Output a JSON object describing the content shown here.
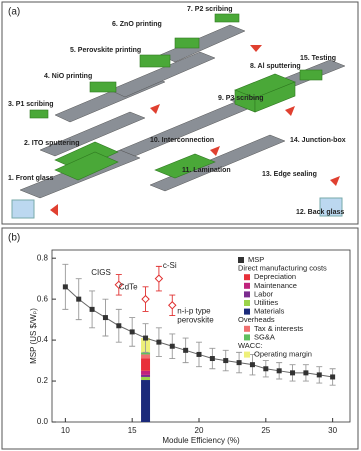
{
  "diagram": {
    "label": "(a)",
    "steps": [
      "1. Front glass",
      "2. ITO sputtering",
      "3. P1 scribing",
      "4. NiO printing",
      "5. Perovskite printing",
      "6. ZnO printing",
      "7. P2 scribing",
      "8. Al sputtering",
      "9. P3 scribing",
      "10. Interconnection",
      "11. Lamination",
      "12. Back glass",
      "13. Edge sealing",
      "14. Junction-box",
      "15. Testing"
    ]
  },
  "chart_data": {
    "type": "line",
    "panel_label": "(b)",
    "x_label": "Module Efficiency (%)",
    "y_label": "MSP (US $/Wₚ)",
    "xlim": [
      9,
      31.3
    ],
    "xticks": [
      10,
      15,
      20,
      25,
      30
    ],
    "ylim": [
      0,
      0.84
    ],
    "yticks": [
      {
        "value": 0,
        "label": "0.0"
      },
      0.2,
      0.4,
      0.6,
      0.8
    ],
    "series": [
      {
        "name": "MSP",
        "color": "#333333",
        "x": [
          10,
          11,
          12,
          13,
          14,
          15,
          16,
          17,
          18,
          19,
          20,
          21,
          22,
          23,
          24,
          25,
          26,
          27,
          28,
          29,
          30
        ],
        "values": [
          0.66,
          0.6,
          0.55,
          0.51,
          0.47,
          0.44,
          0.41,
          0.39,
          0.37,
          0.35,
          0.33,
          0.31,
          0.3,
          0.29,
          0.28,
          0.26,
          0.25,
          0.24,
          0.24,
          0.23,
          0.22
        ],
        "errors": [
          0.11,
          0.1,
          0.09,
          0.09,
          0.08,
          0.07,
          0.07,
          0.07,
          0.06,
          0.06,
          0.06,
          0.05,
          0.05,
          0.05,
          0.05,
          0.04,
          0.04,
          0.04,
          0.04,
          0.04,
          0.04
        ]
      }
    ],
    "others": {
      "color": "#e03030",
      "points": [
        {
          "name": "CIGS",
          "x": 14,
          "value": 0.67,
          "error": 0.05
        },
        {
          "name": "CdTe",
          "x": 16,
          "value": 0.6,
          "error": 0.06
        },
        {
          "name": "c-Si",
          "x": 17,
          "value": 0.7,
          "error": 0.06
        },
        {
          "name": "n-i-p type perovskite",
          "x": 18,
          "value": 0.57,
          "error": 0.05
        }
      ]
    },
    "legend_headers": [
      "Direct manufacturing costs",
      "Overheads",
      "WACC:"
    ],
    "stack": {
      "x": 16,
      "segments": [
        {
          "name": "Depreciation",
          "color": "#e8303a",
          "value": 0.06
        },
        {
          "name": "Maintenance",
          "color": "#c0237c",
          "value": 0.02
        },
        {
          "name": "Labor",
          "color": "#7b2c8f",
          "value": 0.01
        },
        {
          "name": "Utilities",
          "color": "#9bd34b",
          "value": 0.015
        },
        {
          "name": "Materials",
          "color": "#1b2a7a",
          "value": 0.205
        },
        {
          "name": "Tax & interests",
          "color": "#f07070",
          "value": 0.02
        },
        {
          "name": "SG&A",
          "color": "#5fbf5f",
          "value": 0.01
        },
        {
          "name": "Operating margin",
          "color": "#eef07a",
          "value": 0.07
        }
      ]
    }
  }
}
